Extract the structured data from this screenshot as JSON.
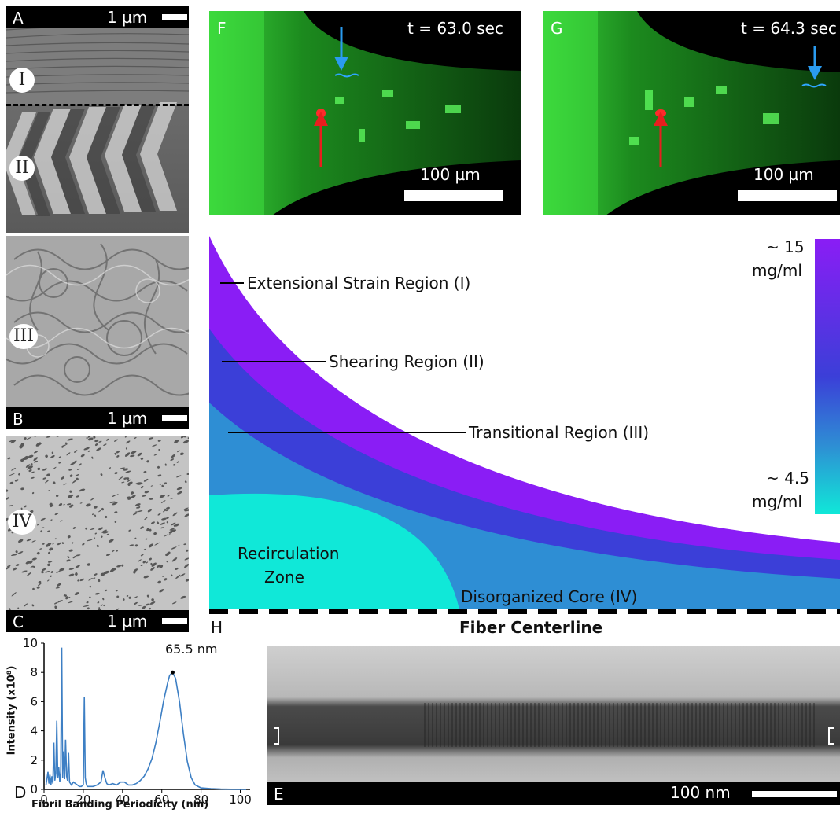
{
  "panels": {
    "A": {
      "letter": "A",
      "scale": "1 µm",
      "zone1": "I",
      "zone2": "II"
    },
    "B": {
      "letter": "B",
      "scale": "1 µm",
      "zone": "III"
    },
    "C": {
      "letter": "C",
      "scale": "1 µm",
      "zone": "IV"
    },
    "D": {
      "letter": "D"
    },
    "E": {
      "letter": "E",
      "scale": "100 nm"
    },
    "F": {
      "letter": "F",
      "time": "t = 63.0 sec",
      "scale": "100 µm"
    },
    "G": {
      "letter": "G",
      "time": "t = 64.3 sec",
      "scale": "100 µm"
    },
    "H": {
      "letter": "H",
      "region1": "Extensional Strain Region (I)",
      "region2": "Shearing Region (II)",
      "region3": "Transitional Region (III)",
      "recirc1": "Recirculation",
      "recirc2": "Zone",
      "core": "Disorganized Core (IV)",
      "centerline": "Fiber Centerline",
      "conc_high": "~ 15",
      "conc_high_unit": "mg/ml",
      "conc_low": "~ 4.5",
      "conc_low_unit": "mg/ml",
      "colors": {
        "purple": "#8a1df5",
        "blue": "#3b3fd8",
        "midblue": "#2e8ed4",
        "cyan": "#10e8d8"
      }
    }
  },
  "chart_data": {
    "type": "line",
    "title": "",
    "xlabel": "Fibril Banding Periodicity (nm)",
    "ylabel": "Intensity (x10⁸)",
    "xlim": [
      0,
      105
    ],
    "ylim": [
      0,
      10
    ],
    "xticks": [
      "0",
      "20",
      "40",
      "60",
      "80",
      "100"
    ],
    "yticks": [
      "0",
      "2",
      "4",
      "6",
      "8",
      "10"
    ],
    "annotation": "65.5 nm",
    "peak": {
      "x": 65.5,
      "y": 8.0
    },
    "series": [
      {
        "color": "#3d7fc4",
        "x": [
          1,
          2,
          2.5,
          3,
          3.5,
          4,
          4.5,
          5,
          5.5,
          6,
          6.5,
          7,
          7.5,
          8,
          8.5,
          9,
          9.5,
          10,
          10.5,
          11,
          11.5,
          12,
          12.5,
          13,
          14,
          15,
          16,
          17,
          18,
          19,
          20,
          20.5,
          21,
          21.5,
          22,
          23,
          25,
          27,
          29,
          30,
          31,
          32,
          33,
          35,
          37,
          39,
          41,
          43,
          45,
          47,
          49,
          51,
          53,
          55,
          57,
          59,
          61,
          63,
          64,
          65.5,
          67,
          69,
          71,
          73,
          75,
          77,
          80,
          85,
          90,
          95,
          100,
          103
        ],
        "y": [
          0.3,
          1.2,
          0.4,
          1.0,
          0.3,
          0.9,
          0.4,
          3.2,
          0.6,
          1.1,
          4.7,
          0.8,
          1.5,
          0.5,
          1.2,
          9.7,
          0.8,
          2.6,
          0.7,
          3.4,
          0.9,
          0.6,
          2.5,
          0.5,
          0.3,
          0.5,
          0.4,
          0.3,
          0.2,
          0.2,
          0.3,
          6.3,
          0.8,
          0.4,
          0.2,
          0.2,
          0.2,
          0.3,
          0.5,
          1.3,
          0.8,
          0.4,
          0.3,
          0.4,
          0.3,
          0.5,
          0.5,
          0.3,
          0.3,
          0.4,
          0.6,
          0.9,
          1.4,
          2.1,
          3.2,
          4.6,
          6.1,
          7.3,
          7.8,
          8.0,
          7.6,
          6.0,
          3.8,
          1.9,
          0.8,
          0.3,
          0.1,
          0.05,
          0.02,
          0.01,
          0.0,
          0.0
        ]
      }
    ]
  }
}
